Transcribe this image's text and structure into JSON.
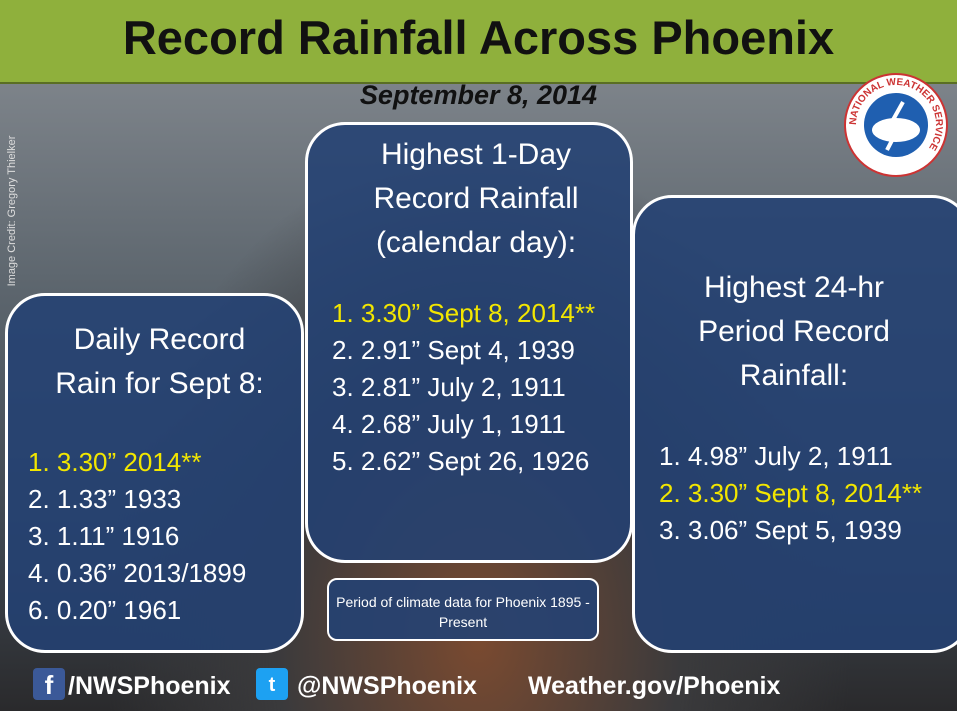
{
  "header": {
    "title": "Record Rainfall Across Phoenix",
    "date": "September 8, 2014",
    "credit": "Image Credit: Gregory Thielker"
  },
  "logo": {
    "text": "NATIONAL WEATHER SERVICE"
  },
  "highlight_color": "#f2e600",
  "panels": [
    {
      "heading_lines": [
        "Daily Record",
        "Rain for Sept 8:"
      ],
      "items": [
        {
          "text": "1. 3.30” 2014**",
          "highlight": true
        },
        {
          "text": "2. 1.33” 1933",
          "highlight": false
        },
        {
          "text": "3. 1.11” 1916",
          "highlight": false
        },
        {
          "text": "4. 0.36” 2013/1899",
          "highlight": false
        },
        {
          "text": "6. 0.20” 1961",
          "highlight": false
        }
      ]
    },
    {
      "heading_lines": [
        "Highest 1-Day",
        "Record Rainfall",
        "(calendar day):"
      ],
      "items": [
        {
          "text": "1. 3.30” Sept 8, 2014**",
          "highlight": true
        },
        {
          "text": "2. 2.91” Sept 4, 1939",
          "highlight": false
        },
        {
          "text": "3. 2.81” July 2, 1911",
          "highlight": false
        },
        {
          "text": "4. 2.68” July 1, 1911",
          "highlight": false
        },
        {
          "text": "5. 2.62” Sept 26, 1926",
          "highlight": false
        }
      ]
    },
    {
      "heading_lines": [
        "Highest 24-hr",
        "Period Record",
        "Rainfall:"
      ],
      "items": [
        {
          "text": "1. 4.98” July 2, 1911",
          "highlight": false
        },
        {
          "text": "2. 3.30” Sept 8, 2014**",
          "highlight": true
        },
        {
          "text": "3. 3.06” Sept 5, 1939",
          "highlight": false
        }
      ]
    }
  ],
  "note": "Period of climate data for Phoenix 1895 - Present",
  "footer": {
    "facebook": "/NWSPhoenix",
    "twitter": "@NWSPhoenix",
    "website": "Weather.gov/Phoenix"
  }
}
